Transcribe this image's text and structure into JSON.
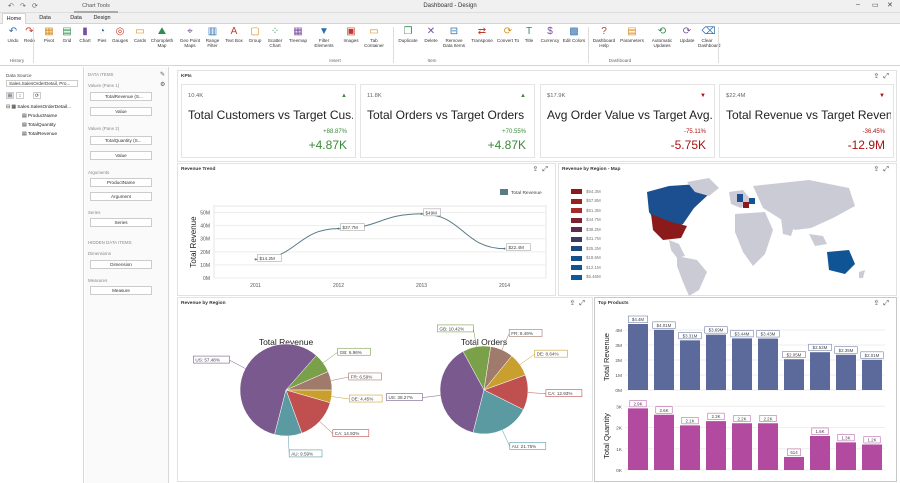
{
  "window": {
    "title": "Dashboard - Design",
    "context_tab": "Chart Tools"
  },
  "tabs": [
    "Home",
    "Data Source",
    "Data",
    "Design"
  ],
  "ribbon": {
    "buttons": [
      {
        "label": "Undo",
        "icon": "undo-icon",
        "glyph": "↶"
      },
      {
        "label": "Redo",
        "icon": "redo-icon",
        "glyph": "↷"
      },
      {
        "label": "Pivot",
        "icon": "pivot-icon",
        "glyph": "▦"
      },
      {
        "label": "Grid",
        "icon": "grid-icon",
        "glyph": "▤"
      },
      {
        "label": "Chart",
        "icon": "chart-icon",
        "glyph": "▮"
      },
      {
        "label": "Pies",
        "icon": "pie-icon",
        "glyph": "◔"
      },
      {
        "label": "Gauges",
        "icon": "gauge-icon",
        "glyph": "◎"
      },
      {
        "label": "Cards",
        "icon": "cards-icon",
        "glyph": "▭"
      },
      {
        "label": "Choropleth Map",
        "icon": "choropleth-map-icon",
        "glyph": "⛰"
      },
      {
        "label": "Geo Point Maps",
        "icon": "geo-point-icon",
        "glyph": "⌖"
      },
      {
        "label": "Range Filter",
        "icon": "range-filter-icon",
        "glyph": "▥"
      },
      {
        "label": "Text Box",
        "icon": "text-box-icon",
        "glyph": "A"
      },
      {
        "label": "Group",
        "icon": "group-icon",
        "glyph": "▢"
      },
      {
        "label": "Scatter Chart",
        "icon": "scatter-icon",
        "glyph": "⁘"
      },
      {
        "label": "Treemap",
        "icon": "treemap-icon",
        "glyph": "▦"
      },
      {
        "label": "Filter Elements",
        "icon": "filter-icon",
        "glyph": "▼"
      },
      {
        "label": "Images",
        "icon": "images-icon",
        "glyph": "▣"
      },
      {
        "label": "Tab Container",
        "icon": "tab-container-icon",
        "glyph": "▭"
      },
      {
        "label": "Duplicate",
        "icon": "duplicate-icon",
        "glyph": "❐"
      },
      {
        "label": "Delete",
        "icon": "delete-icon",
        "glyph": "✕"
      },
      {
        "label": "Remove Data Items",
        "icon": "remove-data-icon",
        "glyph": "⊟"
      },
      {
        "label": "Transpose",
        "icon": "transpose-icon",
        "glyph": "⇄"
      },
      {
        "label": "Convert To",
        "icon": "convert-icon",
        "glyph": "⟳"
      },
      {
        "label": "Title",
        "icon": "title-icon",
        "glyph": "T"
      },
      {
        "label": "Currency",
        "icon": "currency-icon",
        "glyph": "$"
      },
      {
        "label": "Edit Colors",
        "icon": "edit-colors-icon",
        "glyph": "▩"
      },
      {
        "label": "Dashboard Help",
        "icon": "help-icon",
        "glyph": "?"
      },
      {
        "label": "Parameters",
        "icon": "parameters-icon",
        "glyph": "▤"
      },
      {
        "label": "Automatic Updates",
        "icon": "auto-update-icon",
        "glyph": "⟲"
      },
      {
        "label": "Update",
        "icon": "update-icon",
        "glyph": "⟳"
      },
      {
        "label": "Clear Dashboard",
        "icon": "clear-icon",
        "glyph": "⌫"
      }
    ],
    "groups": [
      "History",
      "Insert",
      "Item",
      "Dashboard"
    ]
  },
  "left": {
    "title": "Data Source",
    "source": "Sales.SalesOrderDetail, Pro...",
    "tree_root": "Sales.SalesOrderDetail...",
    "fields": [
      "ProductName",
      "TotalQuantity",
      "TotalRevenue"
    ]
  },
  "mid": {
    "section": "DATA ITEMS",
    "values1": "Values (Pane 1)",
    "item1": "TotalRevenue (S...",
    "value_btn1": "Value",
    "values2": "Values (Pane 2)",
    "item2": "TotalQuantity (S...",
    "value_btn2": "Value",
    "arguments": "Arguments",
    "arg_item": "ProductName",
    "arg_btn": "Argument",
    "series": "Series",
    "series_btn": "Series",
    "hidden": "HIDDEN DATA ITEMS",
    "dimensions": "Dimensions",
    "dim_btn": "Dimension",
    "measures": "Measures",
    "meas_btn": "Measure"
  },
  "kpi": {
    "title": "KPIs",
    "cards": [
      {
        "value": "10.4K",
        "title": "Total Customers vs Target Cus...",
        "pct": "+88.87%",
        "delta": "+4.87K",
        "dir": "up"
      },
      {
        "value": "11.8K",
        "title": "Total Orders vs Target Orders",
        "pct": "+70.55%",
        "delta": "+4.87K",
        "dir": "up"
      },
      {
        "value": "$17.9K",
        "title": "Avg Order Value vs Target Avg...",
        "pct": "-75.11%",
        "delta": "-5.75K",
        "dir": "down"
      },
      {
        "value": "$22.4M",
        "title": "Total Revenue vs Target Reven...",
        "pct": "-36.45%",
        "delta": "-12.9M",
        "dir": "down"
      }
    ]
  },
  "trend": {
    "title": "Revenue Trend"
  },
  "map": {
    "title": "Revenue by Region - Map",
    "legend": [
      "$64.3M",
      "$57.8M",
      "$51.3M",
      "$44.7M",
      "$38.2M",
      "$31.7M",
      "$25.2M",
      "$18.6M",
      "$12.1M",
      "$5.46M"
    ],
    "colors": [
      "#8b1a1a",
      "#9a2020",
      "#a52a2a",
      "#7a2230",
      "#5c2c4a",
      "#3c3c62",
      "#1d4a7a",
      "#14508a",
      "#0f5495",
      "#0b5aa0"
    ]
  },
  "pies": {
    "title": "Revenue by Region"
  },
  "top": {
    "title": "Top Products"
  },
  "colors": {
    "pie": [
      "#7a5a8e",
      "#c05050",
      "#c9a030",
      "#5a9aa0",
      "#7aa04a",
      "#a07a6a"
    ],
    "bar1": "#5b6a9a",
    "bar2": "#b24aa0",
    "line": "#5a7a86"
  },
  "chart_data": [
    {
      "type": "line",
      "title": "Revenue Trend",
      "ylabel": "Total Revenue",
      "categories": [
        "2011",
        "2012",
        "2013",
        "2014"
      ],
      "series": [
        {
          "name": "Total Revenue",
          "values": [
            14.2,
            37.7,
            49,
            22.4
          ],
          "labels": [
            "$14.2M",
            "$37.7M",
            "$49M",
            "$22.4M"
          ]
        }
      ],
      "yticks": [
        "0M",
        "10M",
        "20M",
        "30M",
        "40M",
        "50M"
      ],
      "ylim": [
        0,
        55
      ]
    },
    {
      "type": "pie",
      "title": "Total Revenue",
      "slices": [
        {
          "label": "US: 57.48%",
          "value": 57.48
        },
        {
          "label": "CA: 14.93%",
          "value": 14.93
        },
        {
          "label": "DE: 4.45%",
          "value": 4.45
        },
        {
          "label": "AU: 9.59%",
          "value": 9.59
        },
        {
          "label": "GB: 6.96%",
          "value": 6.96
        },
        {
          "label": "FR: 6.59%",
          "value": 6.59
        }
      ]
    },
    {
      "type": "pie",
      "title": "Total Orders",
      "slices": [
        {
          "label": "US: 38.27%",
          "value": 38.27
        },
        {
          "label": "CA: 12.93%",
          "value": 12.93
        },
        {
          "label": "DE: 8.64%",
          "value": 8.64
        },
        {
          "label": "AU: 21.75%",
          "value": 21.75
        },
        {
          "label": "GB: 10.42%",
          "value": 10.42
        },
        {
          "label": "FR: 8.49%",
          "value": 8.49
        }
      ]
    },
    {
      "type": "bar",
      "title": "Top Products",
      "ylabel": "Total Revenue",
      "yticks": [
        "0M",
        "1M",
        "2M",
        "3M",
        "4M"
      ],
      "ylim": [
        0,
        4.4
      ],
      "values": [
        4.4,
        4.01,
        3.31,
        3.69,
        3.44,
        3.43,
        2.05,
        2.52,
        2.35,
        2.01
      ],
      "labels": [
        "$4.4M",
        "$4.01M",
        "$3.31M",
        "$3.69M",
        "$3.44M",
        "$3.43M",
        "$2.05M",
        "$2.52M",
        "$2.35M",
        "$2.01M"
      ]
    },
    {
      "type": "bar",
      "title": "",
      "ylabel": "Total Quantity",
      "yticks": [
        "0K",
        "1K",
        "2K",
        "3K"
      ],
      "ylim": [
        0,
        3.2
      ],
      "values": [
        2.9,
        2.6,
        2.1,
        2.3,
        2.2,
        2.2,
        0.614,
        1.6,
        1.3,
        1.2
      ],
      "labels": [
        "2.9K",
        "2.6K",
        "2.1K",
        "2.3K",
        "2.2K",
        "2.2K",
        "614",
        "1.6K",
        "1.3K",
        "1.2K"
      ]
    }
  ]
}
